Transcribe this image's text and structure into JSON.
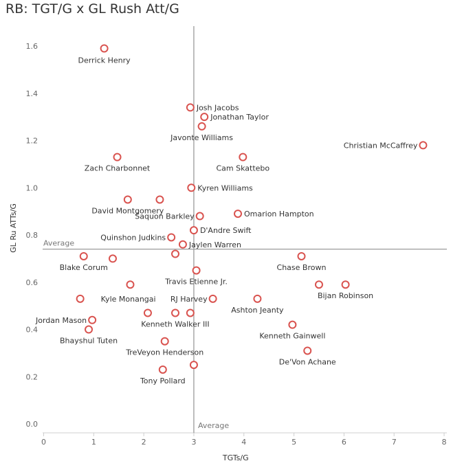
{
  "title": "RB: TGT/G x GL Rush Att/G",
  "chart_data": {
    "type": "scatter",
    "title": "RB: TGT/G x GL Rush Att/G",
    "xlabel": "TGTs/G",
    "ylabel": "GL Ru ATTs/G",
    "xlim": [
      0,
      8
    ],
    "ylim": [
      0,
      1.7
    ],
    "x_ticks": [
      "0",
      "1",
      "2",
      "3",
      "4",
      "5",
      "6",
      "7",
      "8"
    ],
    "y_ticks": [
      "0.0",
      "0.2",
      "0.4",
      "0.6",
      "0.8",
      "1.0",
      "1.2",
      "1.4",
      "1.6"
    ],
    "grid": false,
    "reference_lines": {
      "x": {
        "value": 3.0,
        "label": "Average"
      },
      "y": {
        "value": 0.74,
        "label": "Average"
      }
    },
    "marker_color": "#d9534f",
    "points": [
      {
        "label": "Derrick Henry",
        "x": 1.21,
        "y": 1.59
      },
      {
        "label": "Josh Jacobs",
        "x": 2.93,
        "y": 1.34
      },
      {
        "label": "Jonathan Taylor",
        "x": 3.21,
        "y": 1.3
      },
      {
        "label": "Javonte Williams",
        "x": 3.16,
        "y": 1.26
      },
      {
        "label": "Christian McCaffrey",
        "x": 7.58,
        "y": 1.18
      },
      {
        "label": "Zach Charbonnet",
        "x": 1.47,
        "y": 1.13
      },
      {
        "label": "Cam Skattebo",
        "x": 3.98,
        "y": 1.13
      },
      {
        "label": "Kyren Williams",
        "x": 2.95,
        "y": 1.0
      },
      {
        "label": "David Montgomery",
        "x": 1.68,
        "y": 0.95
      },
      {
        "label": "",
        "x": 2.32,
        "y": 0.95
      },
      {
        "label": "Omarion Hampton",
        "x": 3.88,
        "y": 0.89
      },
      {
        "label": "Saquon Barkley",
        "x": 3.12,
        "y": 0.88
      },
      {
        "label": "D'Andre Swift",
        "x": 3.0,
        "y": 0.82
      },
      {
        "label": "Quinshon Judkins",
        "x": 2.55,
        "y": 0.79
      },
      {
        "label": "Jaylen Warren",
        "x": 2.78,
        "y": 0.76
      },
      {
        "label": "",
        "x": 2.63,
        "y": 0.72
      },
      {
        "label": "Blake Corum",
        "x": 0.8,
        "y": 0.71
      },
      {
        "label": "",
        "x": 1.38,
        "y": 0.7
      },
      {
        "label": "Chase Brown",
        "x": 5.15,
        "y": 0.71
      },
      {
        "label": "Travis Etienne Jr.",
        "x": 3.05,
        "y": 0.65
      },
      {
        "label": "",
        "x": 1.73,
        "y": 0.59
      },
      {
        "label": "",
        "x": 5.5,
        "y": 0.59
      },
      {
        "label": "Bijan Robinson",
        "x": 6.03,
        "y": 0.59
      },
      {
        "label": "Kyle Monangai",
        "x": 0.73,
        "y": 0.53
      },
      {
        "label": "RJ Harvey",
        "x": 3.38,
        "y": 0.53
      },
      {
        "label": "Ashton Jeanty",
        "x": 4.27,
        "y": 0.53
      },
      {
        "label": "",
        "x": 2.08,
        "y": 0.47
      },
      {
        "label": "Kenneth Walker III",
        "x": 2.63,
        "y": 0.47
      },
      {
        "label": "",
        "x": 2.93,
        "y": 0.47
      },
      {
        "label": "Jordan Mason",
        "x": 0.97,
        "y": 0.44
      },
      {
        "label": "Bhayshul Tuten",
        "x": 0.9,
        "y": 0.4
      },
      {
        "label": "Kenneth Gainwell",
        "x": 4.97,
        "y": 0.42
      },
      {
        "label": "TreVeyon Henderson",
        "x": 2.42,
        "y": 0.35
      },
      {
        "label": "De'Von Achane",
        "x": 5.27,
        "y": 0.31
      },
      {
        "label": "",
        "x": 3.0,
        "y": 0.25
      },
      {
        "label": "Tony Pollard",
        "x": 2.38,
        "y": 0.23
      }
    ]
  }
}
